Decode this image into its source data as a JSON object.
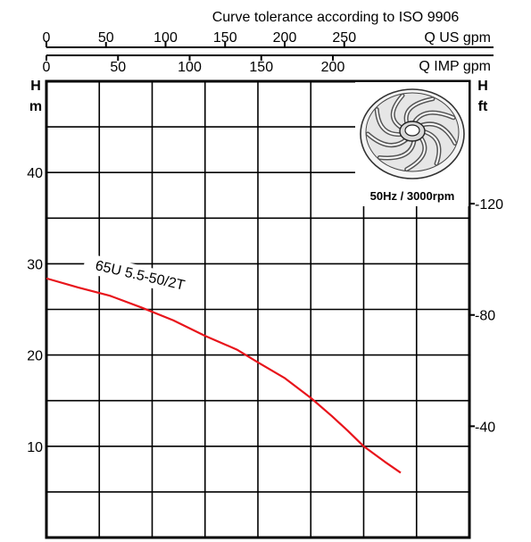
{
  "chart_data": {
    "type": "line",
    "title": "Curve tolerance according to ISO 9906",
    "x_top_us": {
      "unit": "Q US gpm",
      "ticks": [
        0,
        50,
        100,
        150,
        200,
        250
      ],
      "range": [
        0,
        400
      ]
    },
    "x_top_imp": {
      "unit": "Q IMP gpm",
      "ticks": [
        0,
        50,
        100,
        150,
        200
      ],
      "range": [
        0,
        333
      ]
    },
    "y_left": {
      "label_main": "H",
      "label_unit": "m",
      "ticks": [
        10,
        20,
        30,
        40
      ],
      "range": [
        0,
        50
      ]
    },
    "y_right": {
      "label_main": "H",
      "label_unit": "ft",
      "ticks": [
        40,
        80,
        120
      ],
      "range": [
        0,
        164
      ]
    },
    "annotation": "50Hz / 3000rpm",
    "impeller_icon": "impeller-icon",
    "curve_color": "#e8141b",
    "series": [
      {
        "name": "65U 5.5-50/2T",
        "x": [
          0,
          30,
          60,
          90,
          120,
          150,
          180,
          200,
          225,
          250,
          270,
          285,
          300,
          320,
          335
        ],
        "y": [
          28.4,
          27.4,
          26.5,
          25.2,
          23.8,
          22.1,
          20.6,
          19.2,
          17.5,
          15.3,
          13.3,
          11.7,
          10.0,
          8.3,
          7.1
        ]
      }
    ],
    "grid": true
  }
}
